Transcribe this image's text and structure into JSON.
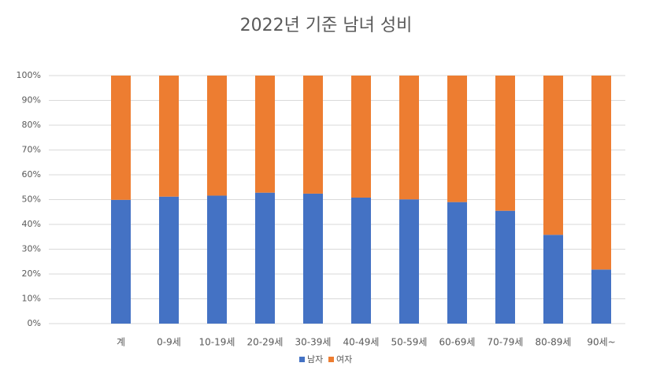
{
  "chart_data": {
    "type": "stacked_bar_100",
    "title": "2022년 기준 남녀 성비",
    "categories": [
      null,
      "계",
      "0-9세",
      "10-19세",
      "20-29세",
      "30-39세",
      "40-49세",
      "50-59세",
      "60-69세",
      "70-79세",
      "80-89세",
      "90세~"
    ],
    "series": [
      {
        "name": "남자",
        "color": "#4472c4",
        "values": [
          null,
          49.9,
          51.2,
          51.6,
          52.8,
          52.4,
          50.8,
          50.1,
          49.0,
          45.5,
          35.8,
          21.8
        ]
      },
      {
        "name": "여자",
        "color": "#ed7d31",
        "values": [
          null,
          50.1,
          48.8,
          48.4,
          47.2,
          47.6,
          49.2,
          49.9,
          51.0,
          54.5,
          64.2,
          78.2
        ]
      }
    ],
    "ylim": [
      0,
      100
    ],
    "yticks": [
      {
        "value": 0,
        "label": "0%"
      },
      {
        "value": 10,
        "label": "10%"
      },
      {
        "value": 20,
        "label": "20%"
      },
      {
        "value": 30,
        "label": "30%"
      },
      {
        "value": 40,
        "label": "40%"
      },
      {
        "value": 50,
        "label": "50%"
      },
      {
        "value": 60,
        "label": "60%"
      },
      {
        "value": 70,
        "label": "70%"
      },
      {
        "value": 80,
        "label": "80%"
      },
      {
        "value": 90,
        "label": "90%"
      },
      {
        "value": 100,
        "label": "100%"
      }
    ],
    "grid": true,
    "legend": "bottom"
  }
}
